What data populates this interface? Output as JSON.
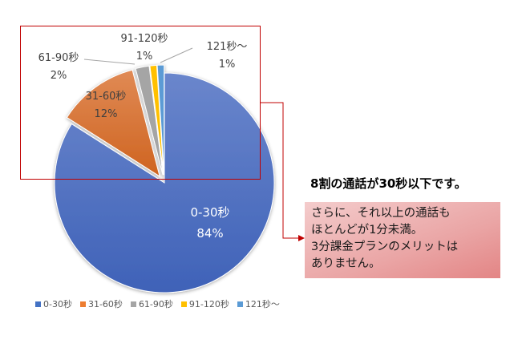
{
  "chart_data": {
    "type": "pie",
    "title": "",
    "categories": [
      "0-30秒",
      "31-60秒",
      "61-90秒",
      "91-120秒",
      "121秒〜"
    ],
    "values": [
      84,
      12,
      2,
      1,
      1
    ],
    "unit": "%",
    "colors": [
      "#4472c4",
      "#ed7d31",
      "#a5a5a5",
      "#ffc000",
      "#5b9bd5"
    ],
    "exploded": [
      "31-60秒",
      "61-90秒",
      "91-120秒",
      "121秒〜"
    ],
    "legend_position": "bottom",
    "data_labels": [
      {
        "name": "0-30秒",
        "percent": "84%"
      },
      {
        "name": "31-60秒",
        "percent": "12%"
      },
      {
        "name": "61-90秒",
        "percent": "2%"
      },
      {
        "name": "91-120秒",
        "percent": "1%"
      },
      {
        "name": "121秒〜",
        "percent": "1%"
      }
    ]
  },
  "annotation": {
    "headline": "8割の通話が30秒以下です。",
    "callout_lines": [
      "さらに、それ以上の通話も",
      "ほとんどが1分未満。",
      "3分課金プランのメリットは",
      "ありません。"
    ],
    "highlight_color": "#c00000"
  },
  "legend": [
    {
      "label": "0-30秒",
      "color": "#4472c4"
    },
    {
      "label": "31-60秒",
      "color": "#ed7d31"
    },
    {
      "label": "61-90秒",
      "color": "#a5a5a5"
    },
    {
      "label": "91-120秒",
      "color": "#ffc000"
    },
    {
      "label": "121秒〜",
      "color": "#5b9bd5"
    }
  ]
}
